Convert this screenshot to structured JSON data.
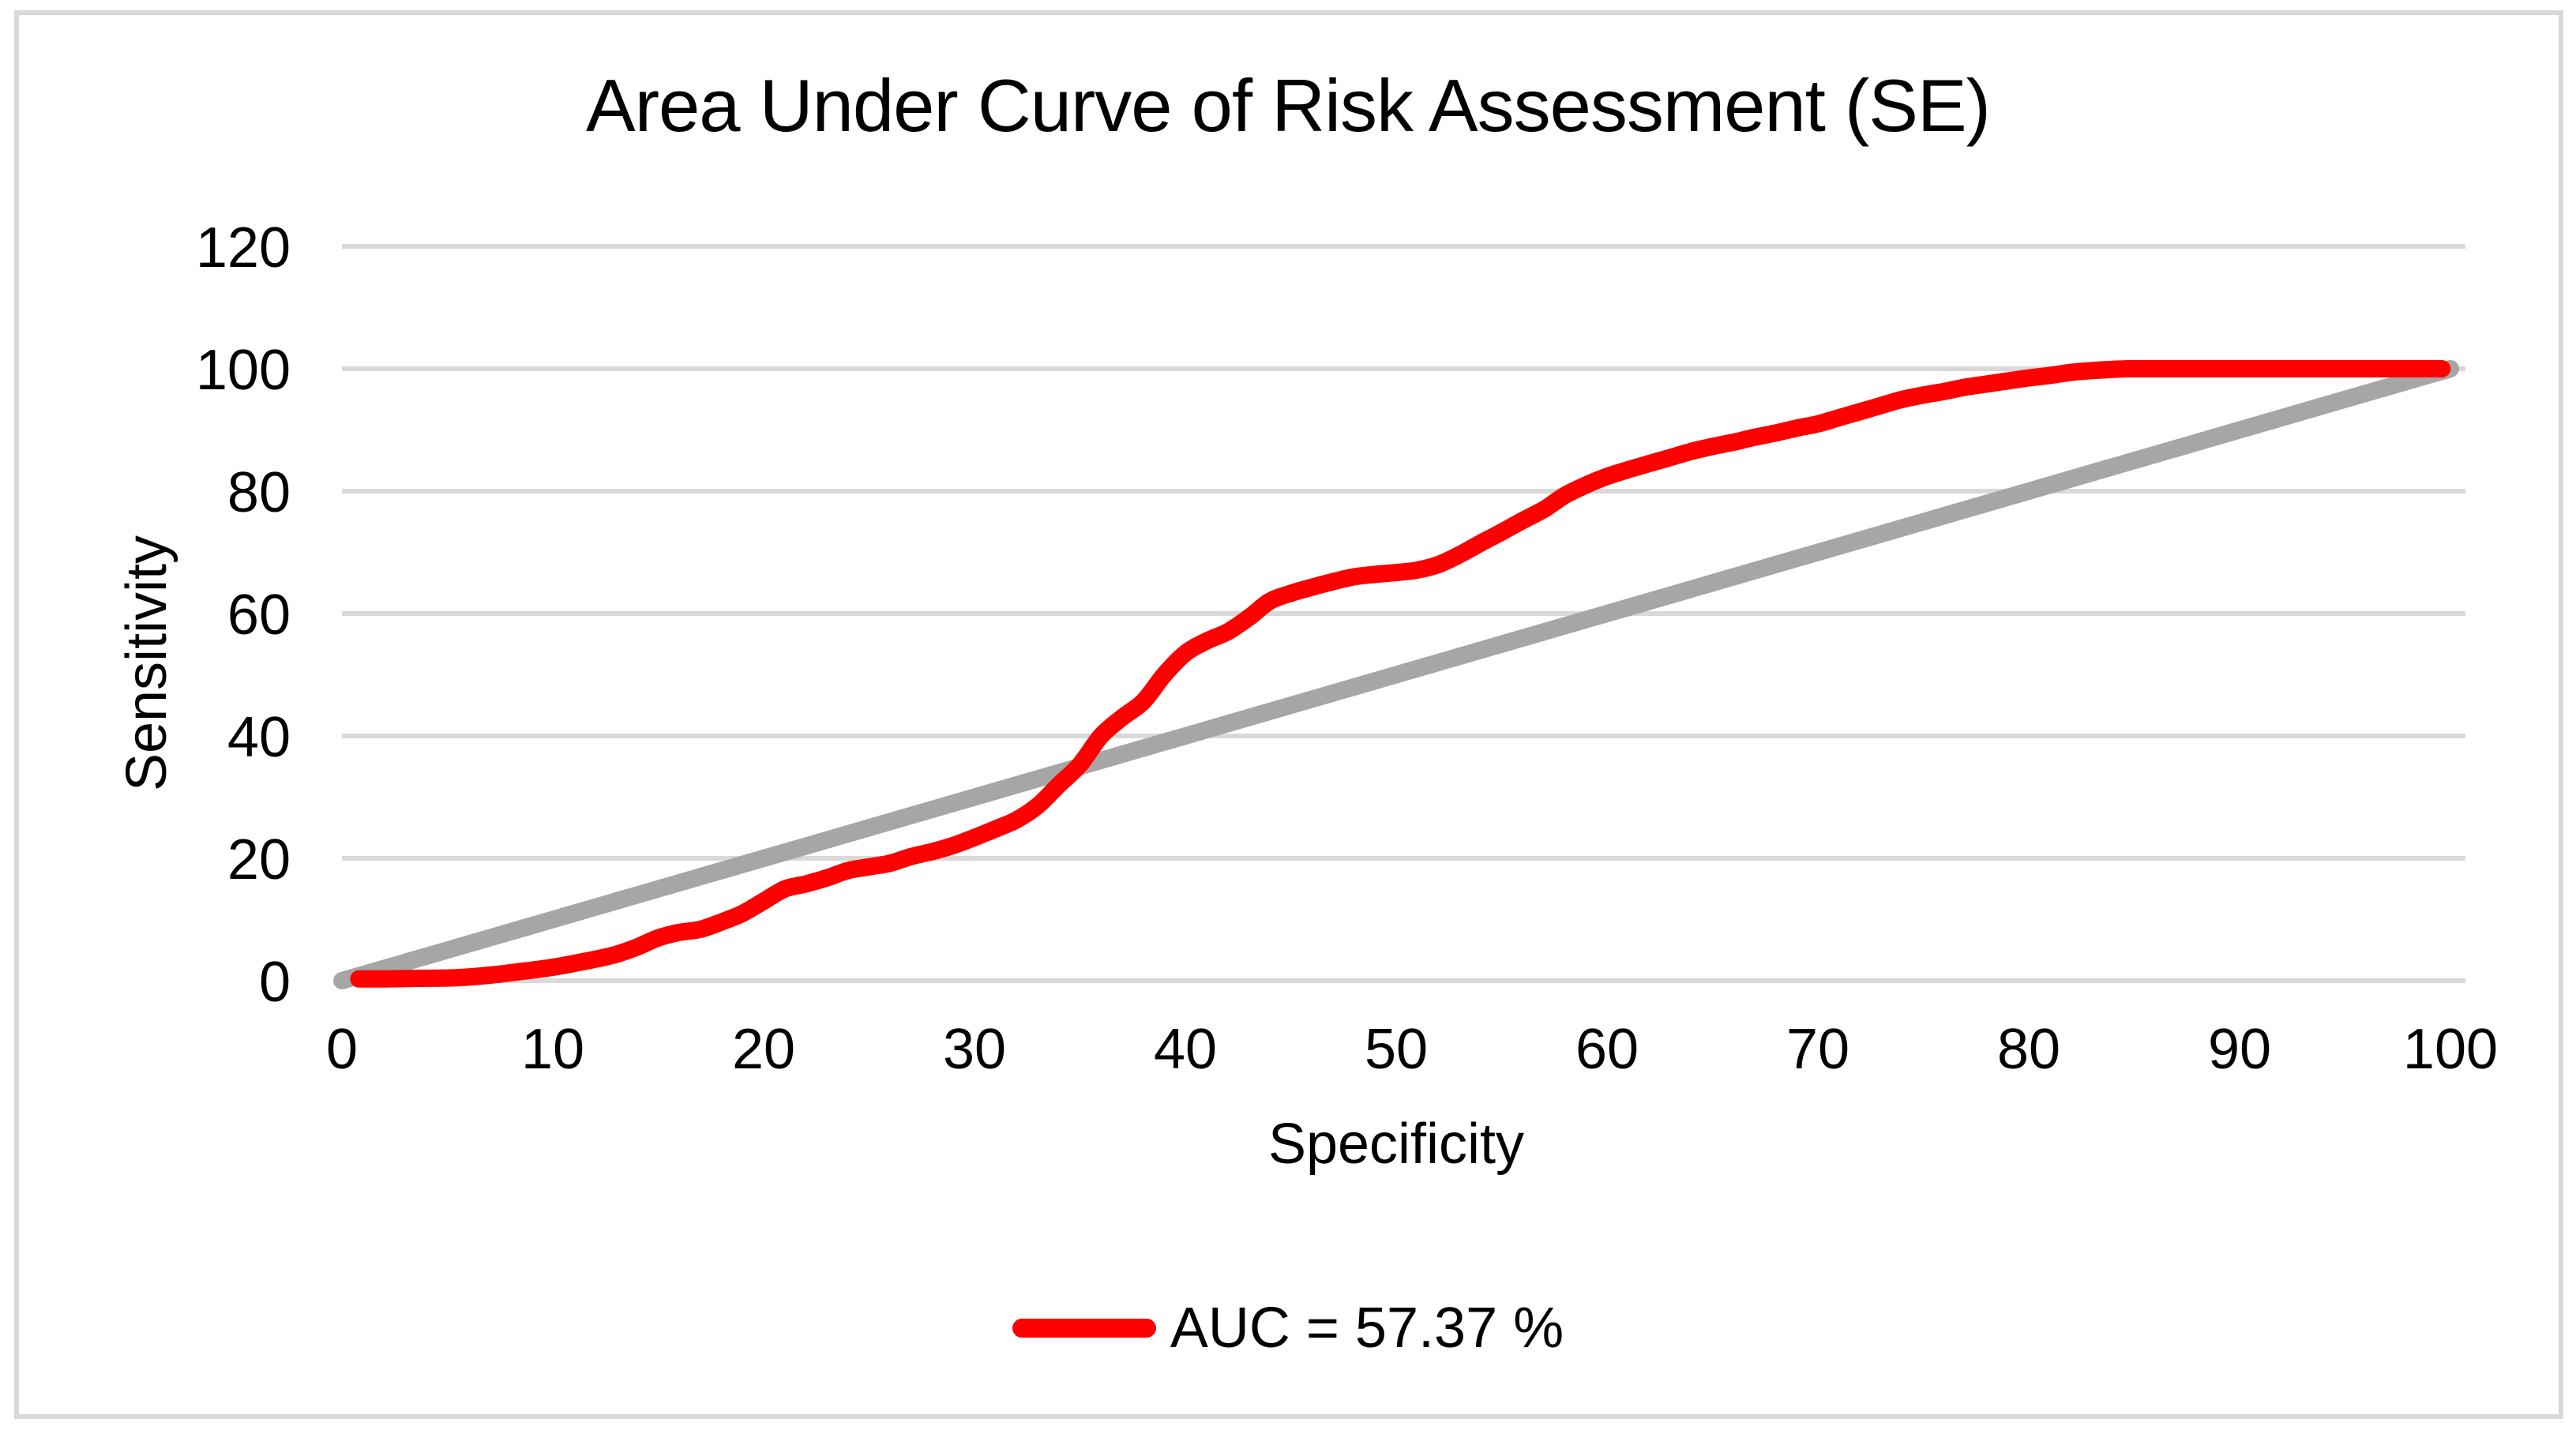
{
  "frame": {
    "border_color": "#D9D9D9"
  },
  "chart_data": {
    "type": "line",
    "title": "Area Under Curve of Risk Assessment (SE)",
    "xlabel": "Specificity",
    "ylabel": "Sensitivity",
    "xlim": [
      0,
      100
    ],
    "ylim": [
      0,
      120
    ],
    "x_ticks": [
      0,
      10,
      20,
      30,
      40,
      50,
      60,
      70,
      80,
      90,
      100
    ],
    "y_ticks": [
      0,
      20,
      40,
      60,
      80,
      100,
      120
    ],
    "grid": "horizontal-only",
    "gridline_color": "#D9D9D9",
    "legend": {
      "label": "AUC = 57.37 %",
      "marker_color": "#FF0000",
      "position": "bottom-center"
    },
    "auc_percent": 57.37,
    "series": [
      {
        "name": "reference-diagonal",
        "color": "#A6A6A6",
        "stroke_width": 22,
        "smooth": false,
        "points": [
          [
            0,
            0
          ],
          [
            100,
            100
          ]
        ]
      },
      {
        "name": "roc-curve",
        "color": "#FF0000",
        "stroke_width": 22,
        "smooth": true,
        "points": [
          [
            0.8,
            0.3
          ],
          [
            2,
            0.3
          ],
          [
            4,
            0.4
          ],
          [
            5.5,
            0.5
          ],
          [
            7,
            0.9
          ],
          [
            8,
            1.3
          ],
          [
            10,
            2.2
          ],
          [
            12,
            3.5
          ],
          [
            13,
            4.3
          ],
          [
            14,
            5.5
          ],
          [
            15,
            7
          ],
          [
            16,
            7.9
          ],
          [
            17,
            8.4
          ],
          [
            18,
            9.6
          ],
          [
            19,
            11
          ],
          [
            20,
            13
          ],
          [
            21,
            15
          ],
          [
            22,
            15.8
          ],
          [
            23,
            16.8
          ],
          [
            24,
            18
          ],
          [
            25,
            18.6
          ],
          [
            26,
            19.2
          ],
          [
            27,
            20.3
          ],
          [
            28,
            21.1
          ],
          [
            29,
            22.1
          ],
          [
            30,
            23.4
          ],
          [
            31,
            24.8
          ],
          [
            32,
            26.3
          ],
          [
            33,
            28.6
          ],
          [
            34,
            32
          ],
          [
            35,
            35.3
          ],
          [
            36,
            40
          ],
          [
            37,
            43
          ],
          [
            38,
            45.6
          ],
          [
            39,
            50
          ],
          [
            40,
            53.5
          ],
          [
            41,
            55.5
          ],
          [
            42,
            57
          ],
          [
            43,
            59.3
          ],
          [
            44,
            62
          ],
          [
            45,
            63.3
          ],
          [
            46,
            64.3
          ],
          [
            47,
            65.2
          ],
          [
            48,
            66
          ],
          [
            49,
            66.4
          ],
          [
            50,
            66.7
          ],
          [
            51,
            67.1
          ],
          [
            52,
            68
          ],
          [
            53,
            69.6
          ],
          [
            54,
            71.5
          ],
          [
            55,
            73.3
          ],
          [
            56,
            75.2
          ],
          [
            57,
            77
          ],
          [
            58,
            79.3
          ],
          [
            59,
            81
          ],
          [
            60,
            82.4
          ],
          [
            61,
            83.5
          ],
          [
            62,
            84.5
          ],
          [
            63,
            85.5
          ],
          [
            64,
            86.5
          ],
          [
            65,
            87.3
          ],
          [
            66,
            88
          ],
          [
            67,
            88.8
          ],
          [
            68,
            89.5
          ],
          [
            69,
            90.3
          ],
          [
            70,
            91
          ],
          [
            71,
            92
          ],
          [
            72,
            93
          ],
          [
            73,
            94
          ],
          [
            74,
            95
          ],
          [
            75,
            95.7
          ],
          [
            76,
            96.3
          ],
          [
            77,
            97
          ],
          [
            78,
            97.5
          ],
          [
            79,
            98
          ],
          [
            80,
            98.5
          ],
          [
            81,
            98.9
          ],
          [
            82,
            99.4
          ],
          [
            83,
            99.7
          ],
          [
            84,
            99.9
          ],
          [
            85,
            100
          ],
          [
            88,
            100
          ],
          [
            92,
            100
          ],
          [
            96,
            100
          ],
          [
            99.6,
            100
          ]
        ]
      }
    ]
  }
}
